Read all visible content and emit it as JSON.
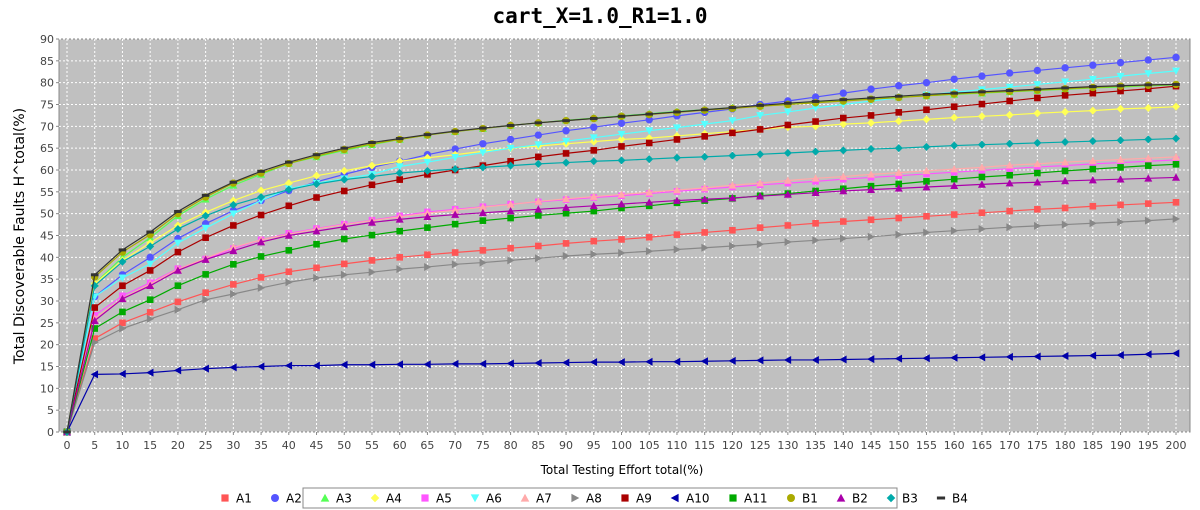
{
  "chart_data": {
    "type": "line",
    "title": "cart_X=1.0_R1=1.0",
    "xlabel": "Total Testing Effort total(%)",
    "ylabel": "Total Discoverable Faults H^total(%)",
    "xlim": [
      0,
      200
    ],
    "ylim": [
      0,
      90
    ],
    "x_ticks": [
      0,
      5,
      10,
      15,
      20,
      25,
      30,
      35,
      40,
      45,
      50,
      55,
      60,
      65,
      70,
      75,
      80,
      85,
      90,
      95,
      100,
      105,
      110,
      115,
      120,
      125,
      130,
      135,
      140,
      145,
      150,
      155,
      160,
      165,
      170,
      175,
      180,
      185,
      190,
      195,
      200
    ],
    "y_ticks": [
      0,
      5,
      10,
      15,
      20,
      25,
      30,
      35,
      40,
      45,
      50,
      55,
      60,
      65,
      70,
      75,
      80,
      85,
      90
    ],
    "grid": true,
    "legend_position": "bottom",
    "background": "#c0c0c0",
    "x": [
      0,
      5,
      10,
      15,
      20,
      25,
      30,
      35,
      40,
      45,
      50,
      55,
      60,
      65,
      70,
      75,
      80,
      85,
      90,
      95,
      100,
      105,
      110,
      115,
      120,
      125,
      130,
      135,
      140,
      145,
      150,
      155,
      160,
      165,
      170,
      175,
      180,
      185,
      190,
      195,
      200
    ],
    "series": [
      {
        "name": "A1",
        "color": "#ff5555",
        "marker": "square",
        "values": [
          0,
          21.4,
          25.0,
          27.4,
          29.8,
          31.9,
          33.8,
          35.4,
          36.7,
          37.6,
          38.5,
          39.3,
          40.0,
          40.6,
          41.1,
          41.6,
          42.1,
          42.6,
          43.2,
          43.7,
          44.1,
          44.6,
          45.2,
          45.7,
          46.2,
          46.8,
          47.3,
          47.8,
          48.2,
          48.6,
          49.0,
          49.4,
          49.8,
          50.2,
          50.6,
          51.0,
          51.3,
          51.7,
          52.0,
          52.3,
          52.6
        ]
      },
      {
        "name": "A2",
        "color": "#5555ff",
        "marker": "circle",
        "values": [
          0,
          31.0,
          36.0,
          40.0,
          44.3,
          47.7,
          50.7,
          53.0,
          55.3,
          57.3,
          59.0,
          60.6,
          62.0,
          63.5,
          64.8,
          66.0,
          67.0,
          68.0,
          69.0,
          69.8,
          70.7,
          71.5,
          72.4,
          73.2,
          74.0,
          75.0,
          75.8,
          76.7,
          77.6,
          78.5,
          79.3,
          80.0,
          80.8,
          81.5,
          82.2,
          82.8,
          83.4,
          84.0,
          84.6,
          85.2,
          85.8
        ]
      },
      {
        "name": "A3",
        "color": "#55ff55",
        "marker": "triangle",
        "values": [
          0,
          34.0,
          40.0,
          44.5,
          49.5,
          53.3,
          56.5,
          59.0,
          61.5,
          63.0,
          64.5,
          65.8,
          67.0,
          68.0,
          68.8,
          69.5,
          70.2,
          70.8,
          71.4,
          71.9,
          72.4,
          72.9,
          73.4,
          73.8,
          74.3,
          74.7,
          75.1,
          75.5,
          75.9,
          76.3,
          76.7,
          77.0,
          77.3,
          77.6,
          77.9,
          78.2,
          78.5,
          78.8,
          79.0,
          79.3,
          79.5
        ]
      },
      {
        "name": "A4",
        "color": "#ffff55",
        "marker": "diamond",
        "values": [
          0,
          34.0,
          39.3,
          43.3,
          47.3,
          50.3,
          53.0,
          55.3,
          57.0,
          58.7,
          59.8,
          61.0,
          62.0,
          62.8,
          63.5,
          64.3,
          65.0,
          65.5,
          66.0,
          66.5,
          67.0,
          67.3,
          67.8,
          68.3,
          68.8,
          69.3,
          69.8,
          70.0,
          70.5,
          70.8,
          71.2,
          71.6,
          72.0,
          72.3,
          72.6,
          73.0,
          73.3,
          73.6,
          74.0,
          74.2,
          74.5
        ]
      },
      {
        "name": "A5",
        "color": "#ff55ff",
        "marker": "square",
        "values": [
          0,
          26.7,
          31.2,
          34.2,
          37.4,
          39.6,
          42.0,
          44.0,
          45.5,
          46.6,
          47.6,
          48.5,
          49.5,
          50.4,
          51.0,
          51.6,
          52.2,
          52.7,
          53.2,
          53.7,
          54.1,
          54.6,
          55.1,
          55.6,
          56.1,
          56.6,
          57.0,
          57.4,
          57.9,
          58.3,
          58.7,
          59.1,
          59.5,
          59.9,
          60.3,
          60.7,
          61.0,
          61.4,
          61.7,
          62.0,
          62.3
        ]
      },
      {
        "name": "A6",
        "color": "#55ffff",
        "marker": "triangle-down",
        "values": [
          0,
          31.0,
          35.3,
          38.5,
          43.3,
          46.7,
          50.0,
          53.0,
          55.7,
          57.0,
          58.0,
          59.0,
          60.8,
          61.8,
          62.9,
          64.0,
          65.0,
          65.8,
          66.6,
          67.4,
          68.2,
          69.0,
          69.7,
          70.5,
          71.3,
          72.5,
          73.3,
          74.2,
          75.0,
          75.8,
          76.5,
          77.2,
          77.8,
          78.4,
          79.0,
          79.6,
          80.2,
          80.8,
          81.5,
          82.1,
          82.7
        ]
      },
      {
        "name": "A7",
        "color": "#ffaaaa",
        "marker": "triangle",
        "values": [
          0,
          26.0,
          30.6,
          33.9,
          37.3,
          39.8,
          42.3,
          44.0,
          45.3,
          46.5,
          47.5,
          48.4,
          49.3,
          50.1,
          50.8,
          51.5,
          52.1,
          52.8,
          53.4,
          53.9,
          54.4,
          54.9,
          55.4,
          55.9,
          56.5,
          57.0,
          57.6,
          58.1,
          58.5,
          59.0,
          59.4,
          59.8,
          60.2,
          60.6,
          61.1,
          61.4,
          61.8,
          62.1,
          62.4,
          62.7,
          63.0
        ]
      },
      {
        "name": "A8",
        "color": "#888888",
        "marker": "triangle-right",
        "values": [
          0,
          20.5,
          23.7,
          25.9,
          28.0,
          30.3,
          31.6,
          33.0,
          34.3,
          35.3,
          36.0,
          36.6,
          37.3,
          37.8,
          38.4,
          38.8,
          39.3,
          39.8,
          40.3,
          40.7,
          41.0,
          41.4,
          41.8,
          42.2,
          42.6,
          43.0,
          43.5,
          43.9,
          44.3,
          44.7,
          45.2,
          45.7,
          46.1,
          46.5,
          46.9,
          47.2,
          47.5,
          47.8,
          48.1,
          48.4,
          48.8
        ]
      },
      {
        "name": "A9",
        "color": "#aa0000",
        "marker": "square",
        "values": [
          0,
          28.5,
          33.5,
          37.0,
          41.2,
          44.5,
          47.3,
          49.7,
          51.8,
          53.7,
          55.2,
          56.6,
          57.8,
          59.0,
          60.0,
          61.0,
          62.0,
          63.0,
          63.8,
          64.5,
          65.4,
          66.2,
          67.0,
          67.7,
          68.5,
          69.3,
          70.3,
          71.1,
          71.9,
          72.5,
          73.2,
          73.8,
          74.5,
          75.1,
          75.8,
          76.5,
          77.1,
          77.6,
          78.1,
          78.6,
          79.2
        ]
      },
      {
        "name": "A10",
        "color": "#0000aa",
        "marker": "triangle-left",
        "values": [
          0,
          13.2,
          13.3,
          13.6,
          14.1,
          14.5,
          14.8,
          15.0,
          15.2,
          15.2,
          15.4,
          15.4,
          15.5,
          15.5,
          15.6,
          15.6,
          15.7,
          15.8,
          15.9,
          16.0,
          16.0,
          16.1,
          16.1,
          16.2,
          16.3,
          16.4,
          16.5,
          16.5,
          16.6,
          16.7,
          16.8,
          16.9,
          17.0,
          17.1,
          17.2,
          17.3,
          17.4,
          17.5,
          17.6,
          17.8,
          18.0
        ]
      },
      {
        "name": "A11",
        "color": "#00aa00",
        "marker": "square",
        "values": [
          0,
          23.7,
          27.5,
          30.3,
          33.5,
          36.1,
          38.4,
          40.2,
          41.6,
          43.0,
          44.2,
          45.1,
          46.0,
          46.8,
          47.6,
          48.4,
          49.0,
          49.6,
          50.1,
          50.6,
          51.3,
          51.8,
          52.5,
          53.0,
          53.5,
          54.1,
          54.6,
          55.2,
          55.7,
          56.3,
          56.8,
          57.4,
          57.9,
          58.4,
          58.8,
          59.3,
          59.8,
          60.2,
          60.6,
          61.0,
          61.3
        ]
      },
      {
        "name": "B1",
        "color": "#aaaa00",
        "marker": "circle",
        "values": [
          0,
          35.5,
          41.2,
          45.2,
          50.0,
          53.8,
          57.0,
          59.3,
          61.5,
          63.2,
          64.7,
          66.0,
          67.0,
          68.0,
          68.8,
          69.5,
          70.2,
          70.8,
          71.3,
          71.8,
          72.3,
          72.7,
          73.2,
          73.7,
          74.1,
          74.6,
          75.0,
          75.4,
          75.8,
          76.2,
          76.6,
          77.0,
          77.4,
          77.7,
          78.0,
          78.3,
          78.6,
          78.9,
          79.2,
          79.4,
          79.6
        ]
      },
      {
        "name": "B2",
        "color": "#aa00aa",
        "marker": "triangle",
        "values": [
          0,
          25.5,
          30.5,
          33.5,
          37.0,
          39.5,
          41.5,
          43.5,
          45.0,
          46.0,
          47.0,
          48.0,
          48.7,
          49.3,
          49.8,
          50.2,
          50.6,
          51.0,
          51.4,
          51.8,
          52.2,
          52.6,
          53.0,
          53.3,
          53.6,
          54.0,
          54.4,
          54.8,
          55.2,
          55.5,
          55.8,
          56.1,
          56.4,
          56.7,
          57.0,
          57.2,
          57.5,
          57.7,
          57.9,
          58.1,
          58.3
        ]
      },
      {
        "name": "B3",
        "color": "#00aaaa",
        "marker": "diamond",
        "values": [
          0,
          33.5,
          39.0,
          42.5,
          46.5,
          49.5,
          52.0,
          53.8,
          55.5,
          56.8,
          57.8,
          58.5,
          59.3,
          59.8,
          60.2,
          60.6,
          61.0,
          61.4,
          61.7,
          62.0,
          62.2,
          62.5,
          62.8,
          63.0,
          63.3,
          63.6,
          63.9,
          64.2,
          64.5,
          64.8,
          65.0,
          65.3,
          65.6,
          65.8,
          66.0,
          66.2,
          66.4,
          66.6,
          66.8,
          67.0,
          67.2
        ]
      },
      {
        "name": "B4",
        "color": "#333333",
        "marker": "dash",
        "values": [
          0,
          36.0,
          41.7,
          45.8,
          50.5,
          54.2,
          57.2,
          59.7,
          61.8,
          63.5,
          65.0,
          66.3,
          67.2,
          68.1,
          68.9,
          69.6,
          70.2,
          70.8,
          71.3,
          71.8,
          72.3,
          72.8,
          73.3,
          73.8,
          74.3,
          74.8,
          75.3,
          75.7,
          76.1,
          76.5,
          76.9,
          77.3,
          77.6,
          77.9,
          78.2,
          78.5,
          78.8,
          79.1,
          79.3,
          79.5,
          79.6
        ]
      }
    ]
  }
}
